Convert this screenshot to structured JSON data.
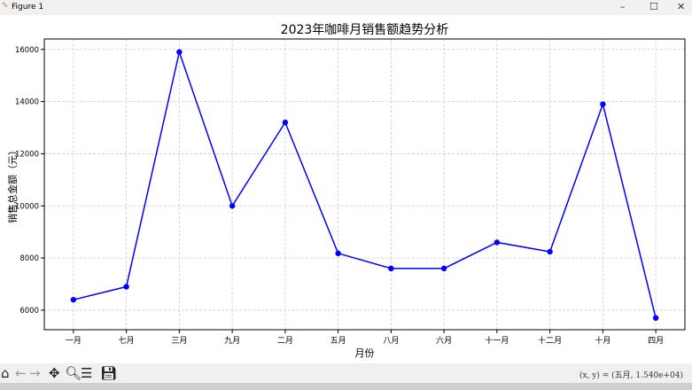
{
  "window": {
    "title": "Figure 1",
    "minimize": "–",
    "maximize": "☐",
    "close": "✕"
  },
  "toolbar": {
    "icons": [
      "home-icon",
      "back-icon",
      "forward-icon",
      "pan-icon",
      "zoom-icon",
      "configure-icon",
      "save-icon"
    ],
    "coords": "(x, y) = (五月, 1.540e+04)"
  },
  "chart_data": {
    "type": "line",
    "title": "2023年咖啡月销售额趋势分析",
    "xlabel": "月份",
    "ylabel": "销售总金额（元）",
    "categories": [
      "一月",
      "七月",
      "三月",
      "九月",
      "二月",
      "五月",
      "八月",
      "六月",
      "十一月",
      "十二月",
      "十月",
      "四月"
    ],
    "values": [
      6400,
      6900,
      15900,
      10000,
      13200,
      8180,
      7600,
      7600,
      8600,
      8240,
      13900,
      5700
    ],
    "ylim": [
      5250,
      16400
    ],
    "yticks": [
      6000,
      8000,
      10000,
      12000,
      14000,
      16000
    ],
    "grid": true,
    "line_color": "#0000ff",
    "marker": "circle"
  }
}
